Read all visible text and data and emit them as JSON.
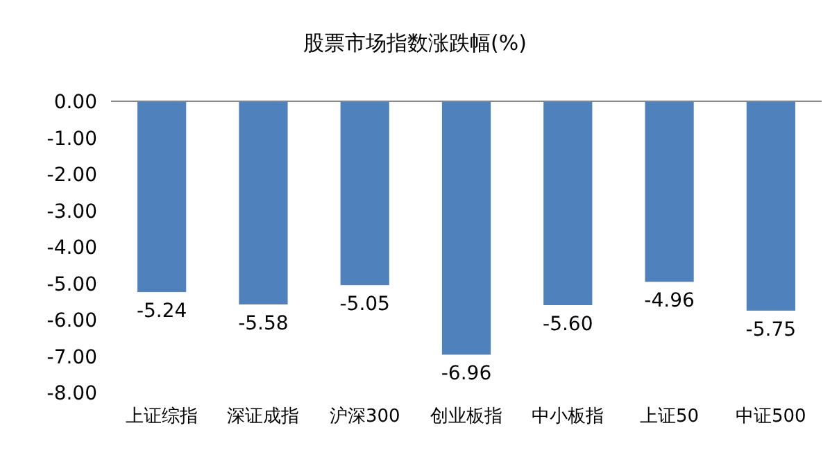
{
  "chart_data": {
    "type": "bar",
    "title": "股票市场指数涨跌幅(%)",
    "categories": [
      "上证综指",
      "深证成指",
      "沪深300",
      "创业板指",
      "中小板指",
      "上证50",
      "中证500"
    ],
    "values": [
      -5.24,
      -5.58,
      -5.05,
      -6.96,
      -5.6,
      -4.96,
      -5.75
    ],
    "value_labels": [
      "-5.24",
      "-5.58",
      "-5.05",
      "-6.96",
      "-5.60",
      "-4.96",
      "-5.75"
    ],
    "color": "#4f81bd",
    "ylim": [
      -8,
      0
    ],
    "yticks": [
      {
        "value": 0,
        "label": "0.00"
      },
      {
        "value": -1,
        "label": "-1.00"
      },
      {
        "value": -2,
        "label": "-2.00"
      },
      {
        "value": -3,
        "label": "-3.00"
      },
      {
        "value": -4,
        "label": "-4.00"
      },
      {
        "value": -5,
        "label": "-5.00"
      },
      {
        "value": -6,
        "label": "-6.00"
      },
      {
        "value": -7,
        "label": "-7.00"
      },
      {
        "value": -8,
        "label": "-8.00"
      }
    ]
  }
}
